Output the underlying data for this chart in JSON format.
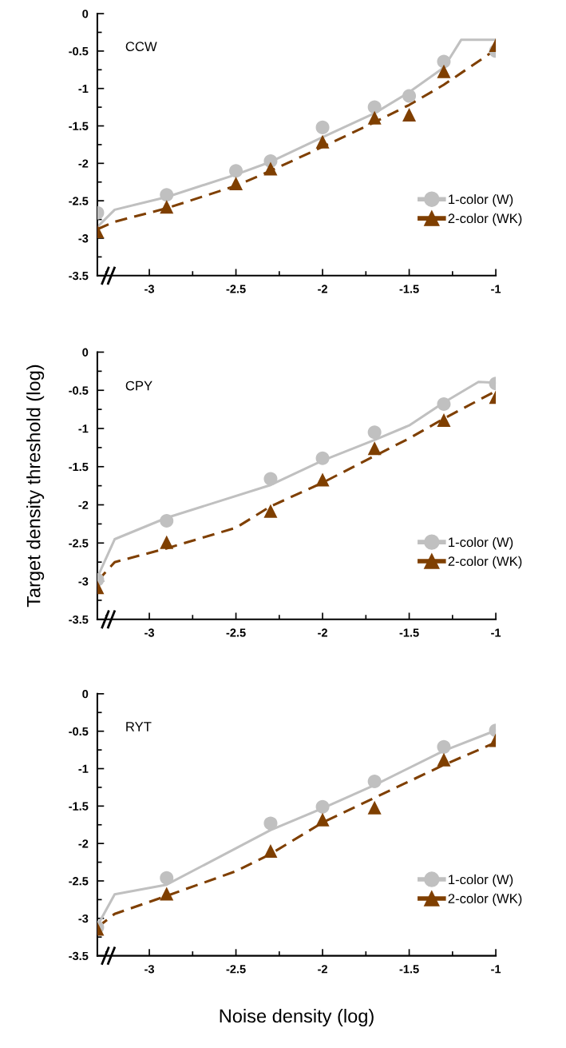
{
  "chart_data": [
    {
      "type": "scatter",
      "title": "CCW",
      "xlim": [
        -3.3,
        -1
      ],
      "ylim": [
        -3.5,
        0
      ],
      "xticks": [
        -3,
        -2.5,
        -2,
        -1.5,
        -1
      ],
      "yticks": [
        -3.5,
        -3,
        -2.5,
        -2,
        -1.5,
        -1,
        -0.5,
        0
      ],
      "legend": "bottom right",
      "grid": false,
      "series": [
        {
          "type": "line",
          "color": "#c0c0c0",
          "line_style": "solid",
          "marker": "none",
          "x": [
            -3.3,
            -3.2,
            -2.9,
            -2.5,
            -2.3,
            -2,
            -1.7,
            -1.5,
            -1.3,
            -1.2,
            -1
          ],
          "values": [
            -2.85,
            -2.62,
            -2.45,
            -2.15,
            -1.98,
            -1.65,
            -1.33,
            -1.05,
            -0.72,
            -0.35,
            -0.35
          ]
        },
        {
          "type": "line",
          "color": "#7f3f00",
          "line_style": "dashed",
          "marker": "none",
          "x": [
            -3.3,
            -3.2,
            -2.9,
            -2.5,
            -2.3,
            -2,
            -1.7,
            -1.5,
            -1.3,
            -1
          ],
          "values": [
            -2.88,
            -2.78,
            -2.6,
            -2.3,
            -2.1,
            -1.78,
            -1.45,
            -1.22,
            -0.95,
            -0.48
          ]
        },
        {
          "name": "1-color (W)",
          "color": "#c0c0c0",
          "marker": "circle",
          "x": [
            -3.3,
            -2.9,
            -2.5,
            -2.3,
            -2,
            -1.7,
            -1.5,
            -1.3,
            -1
          ],
          "values": [
            -2.66,
            -2.42,
            -2.1,
            -1.97,
            -1.52,
            -1.25,
            -1.1,
            -0.64,
            -0.5
          ]
        },
        {
          "name": "2-color (WK)",
          "color": "#7f3f00",
          "marker": "triangle",
          "x": [
            -3.3,
            -2.9,
            -2.5,
            -2.3,
            -2,
            -1.7,
            -1.5,
            -1.3,
            -1
          ],
          "values": [
            -2.91,
            -2.58,
            -2.27,
            -2.07,
            -1.71,
            -1.39,
            -1.35,
            -0.77,
            -0.42
          ]
        }
      ]
    },
    {
      "type": "scatter",
      "title": "CPY",
      "ylabel": "Target density threshold (log)",
      "xlim": [
        -3.3,
        -1
      ],
      "ylim": [
        -3.5,
        0
      ],
      "xticks": [
        -3,
        -2.5,
        -2,
        -1.5,
        -1
      ],
      "yticks": [
        -3.5,
        -3,
        -2.5,
        -2,
        -1.5,
        -1,
        -0.5,
        0
      ],
      "legend": "bottom right",
      "grid": false,
      "series": [
        {
          "type": "line",
          "color": "#c0c0c0",
          "line_style": "solid",
          "marker": "none",
          "x": [
            -3.3,
            -3.2,
            -2.9,
            -2.3,
            -2,
            -1.7,
            -1.5,
            -1.3,
            -1.1,
            -1
          ],
          "values": [
            -2.95,
            -2.45,
            -2.17,
            -1.74,
            -1.42,
            -1.15,
            -0.96,
            -0.66,
            -0.39,
            -0.4
          ]
        },
        {
          "type": "line",
          "color": "#7f3f00",
          "line_style": "dashed",
          "marker": "none",
          "x": [
            -3.3,
            -3.2,
            -2.9,
            -2.5,
            -2.3,
            -2,
            -1.7,
            -1.5,
            -1.3,
            -1
          ],
          "values": [
            -3.0,
            -2.75,
            -2.57,
            -2.3,
            -2.02,
            -1.71,
            -1.36,
            -1.13,
            -0.87,
            -0.51
          ]
        },
        {
          "name": "1-color (W)",
          "color": "#c0c0c0",
          "marker": "circle",
          "x": [
            -3.3,
            -2.9,
            -2.3,
            -2,
            -1.7,
            -1.3,
            -1
          ],
          "values": [
            -2.98,
            -2.21,
            -1.66,
            -1.39,
            -1.05,
            -0.68,
            -0.41
          ]
        },
        {
          "name": "2-color (WK)",
          "color": "#7f3f00",
          "marker": "triangle",
          "x": [
            -3.3,
            -2.9,
            -2.3,
            -2,
            -1.7,
            -1.3,
            -1
          ],
          "values": [
            -3.08,
            -2.49,
            -2.08,
            -1.67,
            -1.26,
            -0.89,
            -0.59
          ]
        }
      ]
    },
    {
      "type": "scatter",
      "title": "RYT",
      "xlabel": "Noise density (log)",
      "xlim": [
        -3.3,
        -1
      ],
      "ylim": [
        -3.5,
        0
      ],
      "xticks": [
        -3,
        -2.5,
        -2,
        -1.5,
        -1
      ],
      "yticks": [
        -3.5,
        -3,
        -2.5,
        -2,
        -1.5,
        -1,
        -0.5,
        0
      ],
      "legend": "bottom right",
      "grid": false,
      "series": [
        {
          "type": "line",
          "color": "#c0c0c0",
          "line_style": "solid",
          "marker": "none",
          "x": [
            -3.3,
            -3.2,
            -2.9,
            -2.3,
            -2,
            -1.7,
            -1.3,
            -1
          ],
          "values": [
            -3.1,
            -2.68,
            -2.55,
            -1.82,
            -1.53,
            -1.22,
            -0.76,
            -0.49
          ]
        },
        {
          "type": "line",
          "color": "#7f3f00",
          "line_style": "dashed",
          "marker": "none",
          "x": [
            -3.3,
            -3.2,
            -2.9,
            -2.5,
            -2.3,
            -2,
            -1.7,
            -1.3,
            -1
          ],
          "values": [
            -3.12,
            -2.94,
            -2.7,
            -2.37,
            -2.14,
            -1.72,
            -1.39,
            -0.95,
            -0.65
          ]
        },
        {
          "name": "1-color (W)",
          "color": "#c0c0c0",
          "marker": "circle",
          "x": [
            -3.3,
            -2.9,
            -2.3,
            -2,
            -1.7,
            -1.3,
            -1
          ],
          "values": [
            -3.12,
            -2.46,
            -1.73,
            -1.51,
            -1.17,
            -0.71,
            -0.49
          ]
        },
        {
          "name": "2-color (WK)",
          "color": "#7f3f00",
          "marker": "triangle",
          "x": [
            -3.3,
            -2.9,
            -2.3,
            -2,
            -1.7,
            -1.3,
            -1
          ],
          "values": [
            -3.14,
            -2.67,
            -2.1,
            -1.68,
            -1.52,
            -0.88,
            -0.62
          ]
        }
      ]
    }
  ]
}
